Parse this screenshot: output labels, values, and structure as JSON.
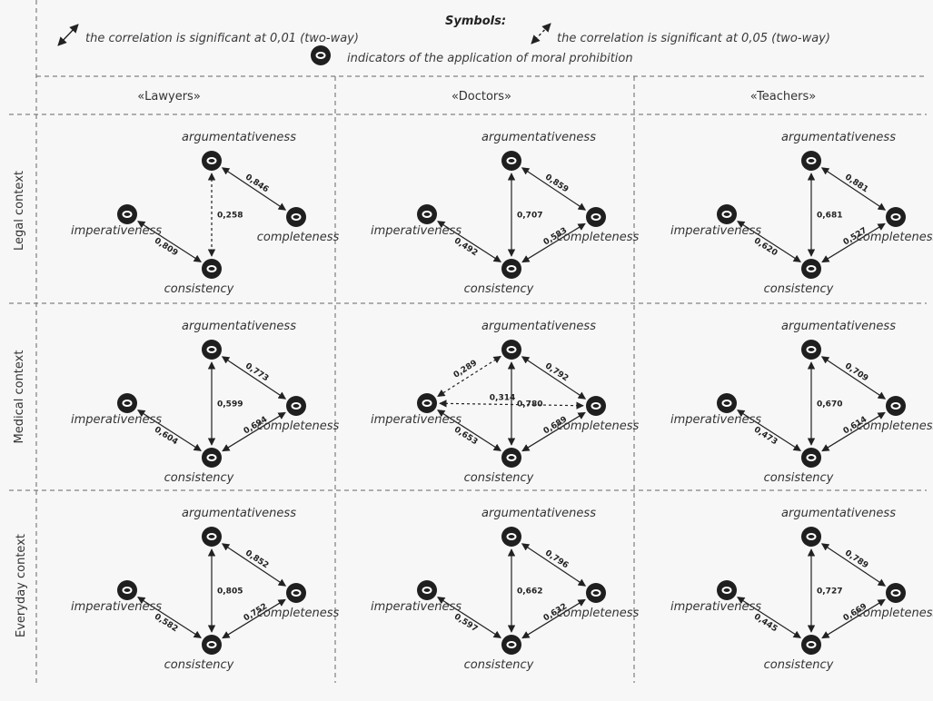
{
  "legend": {
    "title": "Symbols:",
    "solid_text": "the correlation is significant at 0,01 (two-way)",
    "dashed_text": "the correlation is significant at 0,05 (two-way)",
    "node_text": "indicators of the application of moral prohibition"
  },
  "columns": [
    "«Lawyers»",
    "«Doctors»",
    "«Teachers»"
  ],
  "rows": [
    "Legal context",
    "Medical context",
    "Everyday context"
  ],
  "node_names": {
    "arg": "argumentativeness",
    "imp": "imperativeness",
    "comp": "completeness",
    "cons": "consistency"
  },
  "panels": [
    {
      "row": 0,
      "col": 0,
      "edges": [
        {
          "from": "arg",
          "to": "comp",
          "value": "0,846",
          "style": "solid"
        },
        {
          "from": "arg",
          "to": "cons",
          "value": "0,258",
          "style": "dashed"
        },
        {
          "from": "imp",
          "to": "cons",
          "value": "0,809",
          "style": "solid"
        }
      ]
    },
    {
      "row": 0,
      "col": 1,
      "edges": [
        {
          "from": "arg",
          "to": "comp",
          "value": "0,859",
          "style": "solid"
        },
        {
          "from": "arg",
          "to": "cons",
          "value": "0,707",
          "style": "solid"
        },
        {
          "from": "imp",
          "to": "cons",
          "value": "0,492",
          "style": "solid"
        },
        {
          "from": "comp",
          "to": "cons",
          "value": "0,583",
          "style": "solid"
        }
      ]
    },
    {
      "row": 0,
      "col": 2,
      "edges": [
        {
          "from": "arg",
          "to": "comp",
          "value": "0,881",
          "style": "solid"
        },
        {
          "from": "arg",
          "to": "cons",
          "value": "0,681",
          "style": "solid"
        },
        {
          "from": "imp",
          "to": "cons",
          "value": "0,620",
          "style": "solid"
        },
        {
          "from": "comp",
          "to": "cons",
          "value": "0,527",
          "style": "solid"
        }
      ]
    },
    {
      "row": 1,
      "col": 0,
      "edges": [
        {
          "from": "arg",
          "to": "comp",
          "value": "0,773",
          "style": "solid"
        },
        {
          "from": "arg",
          "to": "cons",
          "value": "0,599",
          "style": "solid"
        },
        {
          "from": "imp",
          "to": "cons",
          "value": "0,604",
          "style": "solid"
        },
        {
          "from": "comp",
          "to": "cons",
          "value": "0,694",
          "style": "solid"
        }
      ]
    },
    {
      "row": 1,
      "col": 1,
      "edges": [
        {
          "from": "arg",
          "to": "comp",
          "value": "0,792",
          "style": "solid"
        },
        {
          "from": "arg",
          "to": "imp",
          "value": "0,289",
          "style": "dashed"
        },
        {
          "from": "imp",
          "to": "comp",
          "value": "0,314",
          "style": "dashed"
        },
        {
          "from": "arg",
          "to": "cons",
          "value": "0,780",
          "style": "solid"
        },
        {
          "from": "imp",
          "to": "cons",
          "value": "0,653",
          "style": "solid"
        },
        {
          "from": "comp",
          "to": "cons",
          "value": "0,689",
          "style": "solid"
        }
      ]
    },
    {
      "row": 1,
      "col": 2,
      "edges": [
        {
          "from": "arg",
          "to": "comp",
          "value": "0,709",
          "style": "solid"
        },
        {
          "from": "arg",
          "to": "cons",
          "value": "0,670",
          "style": "solid"
        },
        {
          "from": "imp",
          "to": "cons",
          "value": "0,473",
          "style": "solid"
        },
        {
          "from": "comp",
          "to": "cons",
          "value": "0,614",
          "style": "solid"
        }
      ]
    },
    {
      "row": 2,
      "col": 0,
      "edges": [
        {
          "from": "arg",
          "to": "comp",
          "value": "0,852",
          "style": "solid"
        },
        {
          "from": "arg",
          "to": "cons",
          "value": "0,805",
          "style": "solid"
        },
        {
          "from": "imp",
          "to": "cons",
          "value": "0,582",
          "style": "solid"
        },
        {
          "from": "comp",
          "to": "cons",
          "value": "0,752",
          "style": "solid"
        }
      ]
    },
    {
      "row": 2,
      "col": 1,
      "edges": [
        {
          "from": "arg",
          "to": "comp",
          "value": "0,796",
          "style": "solid"
        },
        {
          "from": "arg",
          "to": "cons",
          "value": "0,662",
          "style": "solid"
        },
        {
          "from": "imp",
          "to": "cons",
          "value": "0,597",
          "style": "solid"
        },
        {
          "from": "comp",
          "to": "cons",
          "value": "0,632",
          "style": "solid"
        }
      ]
    },
    {
      "row": 2,
      "col": 2,
      "edges": [
        {
          "from": "arg",
          "to": "comp",
          "value": "0,789",
          "style": "solid"
        },
        {
          "from": "arg",
          "to": "cons",
          "value": "0,727",
          "style": "solid"
        },
        {
          "from": "imp",
          "to": "cons",
          "value": "0,445",
          "style": "solid"
        },
        {
          "from": "comp",
          "to": "cons",
          "value": "0,669",
          "style": "solid"
        }
      ]
    }
  ]
}
